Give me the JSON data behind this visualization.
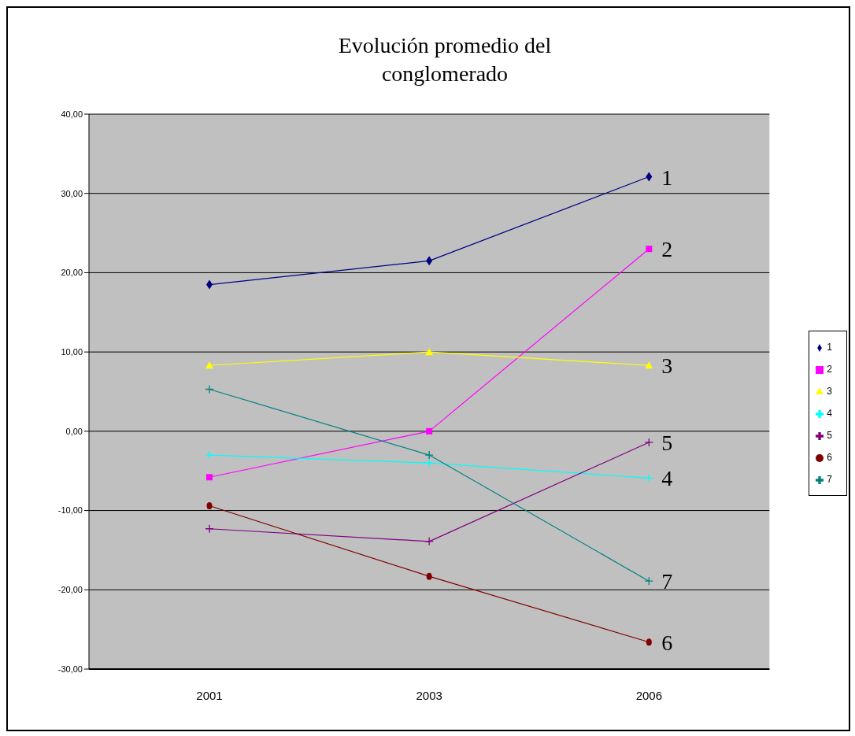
{
  "chart_data": {
    "type": "line",
    "title": "Evolución promedio del conglomerado",
    "categories": [
      "2001",
      "2003",
      "2006"
    ],
    "series": [
      {
        "name": "1",
        "color": "#000080",
        "marker": "diamond",
        "values": [
          18.5,
          21.5,
          32.1
        ]
      },
      {
        "name": "2",
        "color": "#ff00ff",
        "marker": "square",
        "values": [
          -5.8,
          0.0,
          23.0
        ]
      },
      {
        "name": "3",
        "color": "#ffff00",
        "marker": "triangle",
        "values": [
          8.3,
          10.0,
          8.3
        ]
      },
      {
        "name": "4",
        "color": "#00ffff",
        "marker": "cross",
        "values": [
          -3.0,
          -4.0,
          -5.9
        ]
      },
      {
        "name": "5",
        "color": "#800080",
        "marker": "cross",
        "values": [
          -12.3,
          -13.9,
          -1.4
        ]
      },
      {
        "name": "6",
        "color": "#800000",
        "marker": "circle",
        "values": [
          -9.4,
          -18.3,
          -26.6
        ]
      },
      {
        "name": "7",
        "color": "#008080",
        "marker": "cross",
        "values": [
          5.3,
          -3.0,
          -18.9
        ]
      }
    ],
    "ylim": [
      -30,
      40
    ],
    "yticks": [
      {
        "value": -30,
        "label": "-30,00"
      },
      {
        "value": -20,
        "label": "-20,00"
      },
      {
        "value": -10,
        "label": "-10,00"
      },
      {
        "value": 0,
        "label": "0,00"
      },
      {
        "value": 10,
        "label": "10,00"
      },
      {
        "value": 20,
        "label": "20,00"
      },
      {
        "value": 30,
        "label": "30,00"
      },
      {
        "value": 40,
        "label": "40,00"
      }
    ],
    "grid": "y",
    "legend": "right",
    "annotations": [
      {
        "text": "1",
        "x": "2006",
        "y": 32.1
      },
      {
        "text": "2",
        "x": "2006",
        "y": 23.0
      },
      {
        "text": "3",
        "x": "2006",
        "y": 8.3
      },
      {
        "text": "5",
        "x": "2006",
        "y": -1.4
      },
      {
        "text": "4",
        "x": "2006",
        "y": -5.9
      },
      {
        "text": "7",
        "x": "2006",
        "y": -18.9
      },
      {
        "text": "6",
        "x": "2006",
        "y": -26.6
      }
    ]
  }
}
